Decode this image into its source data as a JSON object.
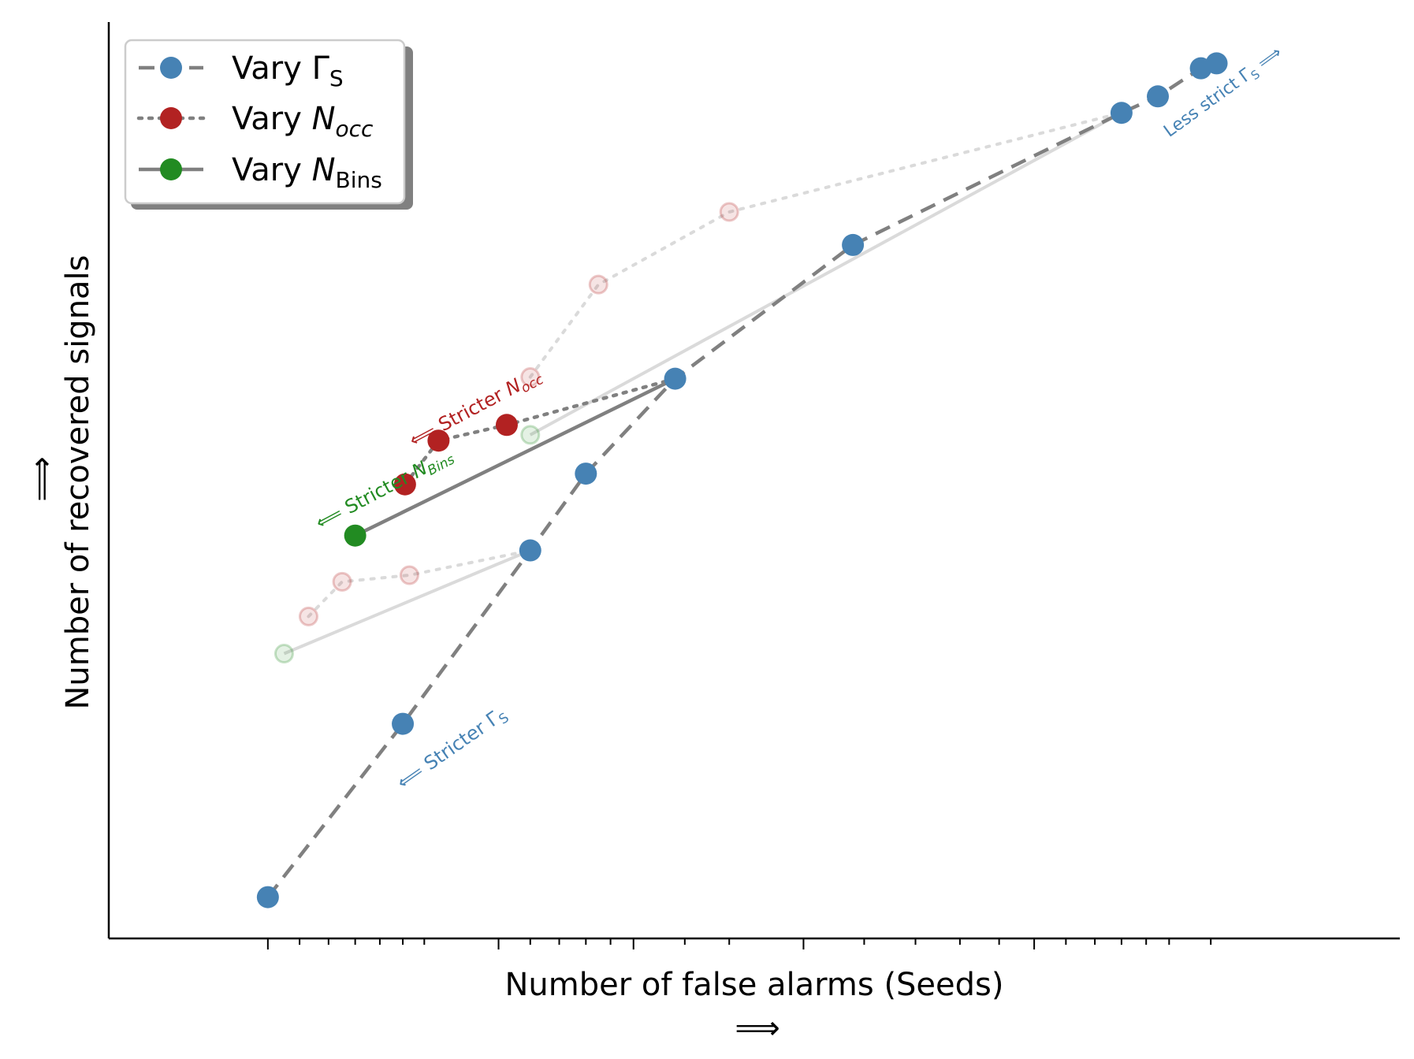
{
  "chart_data": {
    "type": "line",
    "title": "",
    "xlabel": "Number of false alarms (Seeds)",
    "xlabel_arrow": "⟹",
    "ylabel": "Number of recovered signals",
    "ylabel_arrow": "⟹",
    "x_scale": "log",
    "x_tick_labels_shown": false,
    "y_tick_labels_shown": false,
    "grid": false,
    "legend_position": "upper-left",
    "xlim": [
      0.62,
      30
    ],
    "ylim": [
      -0.5,
      10.6
    ],
    "series": [
      {
        "name": "Vary Γ_S",
        "legend_main": "Vary Γ",
        "legend_sub": "S",
        "legend_italic": false,
        "linestyle": "dashed",
        "color": "#4682B4",
        "line_color": "#808080",
        "points": [
          {
            "x": 1.0,
            "y": 0.0
          },
          {
            "x": 1.5,
            "y": 2.1
          },
          {
            "x": 2.2,
            "y": 4.2
          },
          {
            "x": 2.6,
            "y": 5.13
          },
          {
            "x": 3.4,
            "y": 6.28
          },
          {
            "x": 5.8,
            "y": 7.9
          },
          {
            "x": 13.0,
            "y": 9.5
          },
          {
            "x": 14.5,
            "y": 9.7
          },
          {
            "x": 16.5,
            "y": 10.04
          },
          {
            "x": 17.3,
            "y": 10.1
          }
        ]
      },
      {
        "name": "Vary N_occ",
        "legend_main": "Vary ",
        "legend_italic_main": "N",
        "legend_sub": "occ",
        "legend_italic": true,
        "linestyle": "dotted",
        "color": "#B22222",
        "line_color": "#808080",
        "points": [
          {
            "x": 1.51,
            "y": 5.0
          },
          {
            "x": 1.67,
            "y": 5.53
          },
          {
            "x": 2.05,
            "y": 5.72
          },
          {
            "x": 3.4,
            "y": 6.28
          }
        ]
      },
      {
        "name": "Vary N_Bins",
        "legend_main": "Vary ",
        "legend_italic_main": "N",
        "legend_sub": "Bins",
        "legend_italic": true,
        "linestyle": "solid",
        "color": "#228B22",
        "line_color": "#808080",
        "points": [
          {
            "x": 1.3,
            "y": 4.38
          },
          {
            "x": 3.4,
            "y": 6.28
          }
        ]
      }
    ],
    "faded_series": [
      {
        "style": "dotted",
        "color": "#B22222",
        "points": [
          {
            "x": 2.2,
            "y": 6.3
          },
          {
            "x": 2.7,
            "y": 7.42
          },
          {
            "x": 4.0,
            "y": 8.3
          },
          {
            "x": 13.0,
            "y": 9.5
          }
        ]
      },
      {
        "style": "dotted",
        "color": "#B22222",
        "points": [
          {
            "x": 1.13,
            "y": 3.4
          },
          {
            "x": 1.25,
            "y": 3.82
          },
          {
            "x": 1.53,
            "y": 3.9
          },
          {
            "x": 2.2,
            "y": 4.2
          }
        ]
      },
      {
        "style": "solid",
        "color": "#228B22",
        "points": [
          {
            "x": 1.05,
            "y": 2.95
          },
          {
            "x": 2.2,
            "y": 4.2
          }
        ]
      },
      {
        "style": "solid",
        "color": "#228B22",
        "points": [
          {
            "x": 2.2,
            "y": 5.6
          },
          {
            "x": 13.0,
            "y": 9.5
          }
        ]
      }
    ],
    "annotations": [
      {
        "id": "stricter-gamma",
        "prefix": "⟸ Stricter Γ",
        "sub": "S",
        "italic": false,
        "color": "#4682B4",
        "x": 1.5,
        "y": 1.3,
        "rotation": -35,
        "size": 24
      },
      {
        "id": "stricter-nocc",
        "prefix": "⟸ Stricter ",
        "italic_main": "N",
        "sub": "occ",
        "italic": true,
        "color": "#B22222",
        "x": 1.55,
        "y": 5.45,
        "rotation": -28,
        "size": 24
      },
      {
        "id": "stricter-nbins",
        "prefix": "⟸ Stricter ",
        "italic_main": "N",
        "sub": "Bins",
        "italic": true,
        "color": "#228B22",
        "x": 1.17,
        "y": 4.45,
        "rotation": -28,
        "size": 24
      },
      {
        "id": "less-strict-gamma",
        "prefix": "Less strict Γ",
        "sub": "S",
        "suffix": " ⟹",
        "italic": false,
        "color": "#4682B4",
        "x": 15.0,
        "y": 9.2,
        "rotation": -36,
        "size": 22
      }
    ],
    "x_minor_ticks": [
      1,
      1.1,
      1.2,
      1.3,
      1.4,
      1.5,
      1.6,
      2,
      2.2,
      2.4,
      2.6,
      2.8,
      3,
      3.5,
      4,
      5,
      6,
      7,
      8,
      9,
      10,
      11,
      12,
      13,
      14,
      15,
      17
    ]
  }
}
